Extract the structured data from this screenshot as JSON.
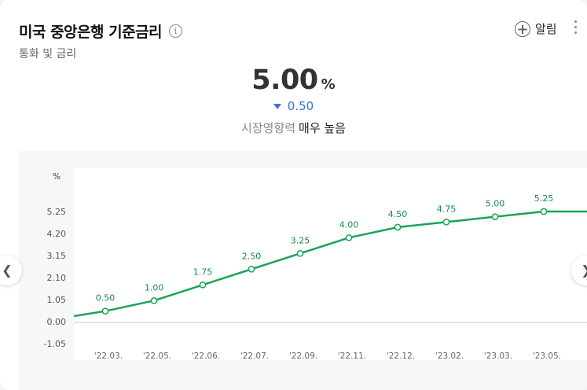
{
  "header": {
    "title": "미국 중앙은행 기준금리",
    "subtitle": "통화 및 금리",
    "info_icon": "info-icon",
    "alarm_label": "알림",
    "alarm_icon": "plus-circle-icon",
    "more_icon": "vertical-ellipsis-icon"
  },
  "summary": {
    "value": "5.00",
    "unit": "%",
    "change_direction": "down",
    "change": "0.50",
    "impact_label": "시장영향력",
    "impact_value": "매우 높음"
  },
  "nav": {
    "prev_icon": "chevron-left-icon",
    "next_icon": "chevron-right-icon"
  },
  "colors": {
    "line": "#1aa35a",
    "down": "#3d6fd8",
    "zero_line": "#b9cbe0"
  },
  "chart_data": {
    "type": "line",
    "ylabel": "%",
    "ylim": [
      -1.05,
      5.25
    ],
    "y_ticks": [
      "5.25",
      "4.20",
      "3.15",
      "2.10",
      "1.05",
      "0.00",
      "-1.05"
    ],
    "y_tick_values": [
      5.25,
      4.2,
      3.15,
      2.1,
      1.05,
      0,
      -1.05
    ],
    "categories": [
      "'22.03.",
      "'22.05.",
      "'22.06.",
      "'22.07.",
      "'22.09.",
      "'22.11.",
      "'22.12.",
      "'23.02.",
      "'23.03.",
      "'23.05."
    ],
    "values": [
      0.5,
      1.0,
      1.75,
      2.5,
      3.25,
      4.0,
      4.5,
      4.75,
      5.0,
      5.25
    ],
    "labels": [
      "0.50",
      "1.00",
      "1.75",
      "2.50",
      "3.25",
      "4.00",
      "4.50",
      "4.75",
      "5.00",
      "5.25"
    ],
    "grid": true
  }
}
